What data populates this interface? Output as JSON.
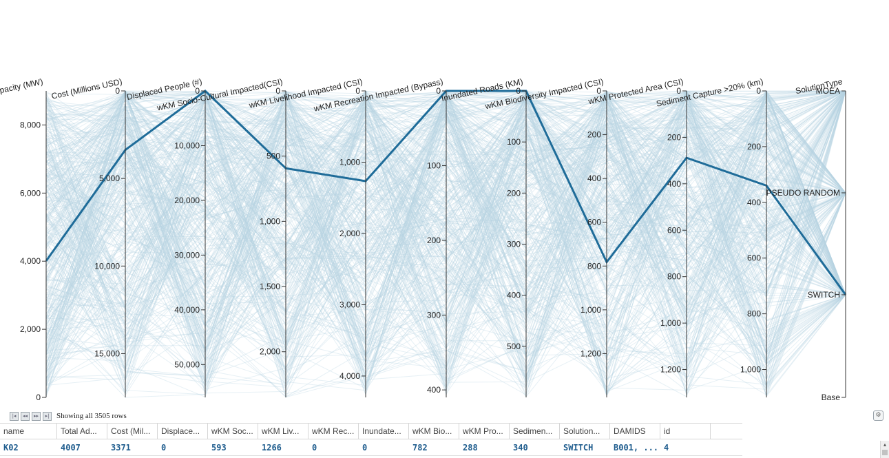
{
  "chart_data": {
    "type": "parallel-coordinates",
    "axes": [
      {
        "name": "Total Addl Capacity (MW)",
        "domain": [
          0,
          9000
        ],
        "ticks": [
          "0",
          "2,000",
          "4,000",
          "6,000",
          "8,000"
        ],
        "tick_values": [
          0,
          2000,
          4000,
          6000,
          8000
        ],
        "tick_side": "left"
      },
      {
        "name": "Cost (Millions USD)",
        "domain": [
          0,
          17500
        ],
        "ticks": [
          "0",
          "5,000",
          "10,000",
          "15,000"
        ],
        "tick_values": [
          0,
          5000,
          10000,
          15000
        ],
        "tick_side": "left",
        "inverted": true
      },
      {
        "name": "Displaced People (#)",
        "domain": [
          0,
          56000
        ],
        "ticks": [
          "0",
          "10,000",
          "20,000",
          "30,000",
          "40,000",
          "50,000"
        ],
        "tick_values": [
          0,
          10000,
          20000,
          30000,
          40000,
          50000
        ],
        "tick_side": "left",
        "inverted": true
      },
      {
        "name": "wKM Socio-Cultural Impacted(CSI)",
        "domain": [
          0,
          2350
        ],
        "ticks": [
          "0",
          "500",
          "1,000",
          "1,500",
          "2,000"
        ],
        "tick_values": [
          0,
          500,
          1000,
          1500,
          2000
        ],
        "tick_side": "left",
        "inverted": true
      },
      {
        "name": "wKM Livelihood Impacted (CSI)",
        "domain": [
          0,
          4300
        ],
        "ticks": [
          "0",
          "1,000",
          "2,000",
          "3,000",
          "4,000"
        ],
        "tick_values": [
          0,
          1000,
          2000,
          3000,
          4000
        ],
        "tick_side": "left",
        "inverted": true
      },
      {
        "name": "wKM Recreation Impacted (Bypass)",
        "domain": [
          0,
          410
        ],
        "ticks": [
          "0",
          "100",
          "200",
          "300",
          "400"
        ],
        "tick_values": [
          0,
          100,
          200,
          300,
          400
        ],
        "tick_side": "left",
        "inverted": true
      },
      {
        "name": "Inundated Roads (KM)",
        "domain": [
          0,
          600
        ],
        "ticks": [
          "0",
          "100",
          "200",
          "300",
          "400",
          "500"
        ],
        "tick_values": [
          0,
          100,
          200,
          300,
          400,
          500
        ],
        "tick_side": "left",
        "inverted": true
      },
      {
        "name": "wKM Biodiversity Impacted (CSI)",
        "domain": [
          0,
          1400
        ],
        "ticks": [
          "0",
          "200",
          "400",
          "600",
          "800",
          "1,000",
          "1,200"
        ],
        "tick_values": [
          0,
          200,
          400,
          600,
          800,
          1000,
          1200
        ],
        "tick_side": "left",
        "inverted": true
      },
      {
        "name": "wKM Protected Area (CSI)",
        "domain": [
          0,
          1320
        ],
        "ticks": [
          "0",
          "200",
          "400",
          "600",
          "800",
          "1,000",
          "1,200"
        ],
        "tick_values": [
          0,
          200,
          400,
          600,
          800,
          1000,
          1200
        ],
        "tick_side": "left",
        "inverted": true
      },
      {
        "name": "Sediment Capture >20% (km)",
        "domain": [
          0,
          1100
        ],
        "ticks": [
          "0",
          "200",
          "400",
          "600",
          "800",
          "1,000"
        ],
        "tick_values": [
          0,
          200,
          400,
          600,
          800,
          1000
        ],
        "tick_side": "left",
        "inverted": true
      },
      {
        "name": "SolutionType",
        "categories": [
          "MOEA",
          "PSEUDO RANDOM",
          "SWITCH",
          "Base"
        ],
        "tick_side": "left"
      }
    ],
    "highlighted": {
      "name": "K02",
      "values": [
        4007,
        3371,
        0,
        593,
        1266,
        0,
        0,
        782,
        288,
        340,
        "SWITCH"
      ]
    },
    "total_rows": 3505,
    "colors": {
      "background_lines": "#b8d3e1",
      "highlight_line": "#1f6c99",
      "axis": "#333333"
    }
  },
  "pager": {
    "status": "Showing all 3505 rows"
  },
  "grid": {
    "columns": [
      "name",
      "Total Ad...",
      "Cost (Mil...",
      "Displace...",
      "wKM Soc...",
      "wKM Liv...",
      "wKM Rec...",
      "Inundate...",
      "wKM Bio...",
      "wKM Pro...",
      "Sedimen...",
      "Solution...",
      "DAMIDS",
      "id"
    ],
    "rows": [
      [
        "K02",
        "4007",
        "3371",
        "0",
        "593",
        "1266",
        "0",
        "0",
        "782",
        "288",
        "340",
        "SWITCH",
        "B001, ...",
        "4"
      ]
    ]
  },
  "icons": {
    "pager_first": "first-page-icon",
    "pager_prev": "previous-page-icon",
    "pager_next": "next-page-icon",
    "pager_last": "last-page-icon",
    "settings": "settings-icon",
    "scroll_up": "scroll-up-icon"
  }
}
